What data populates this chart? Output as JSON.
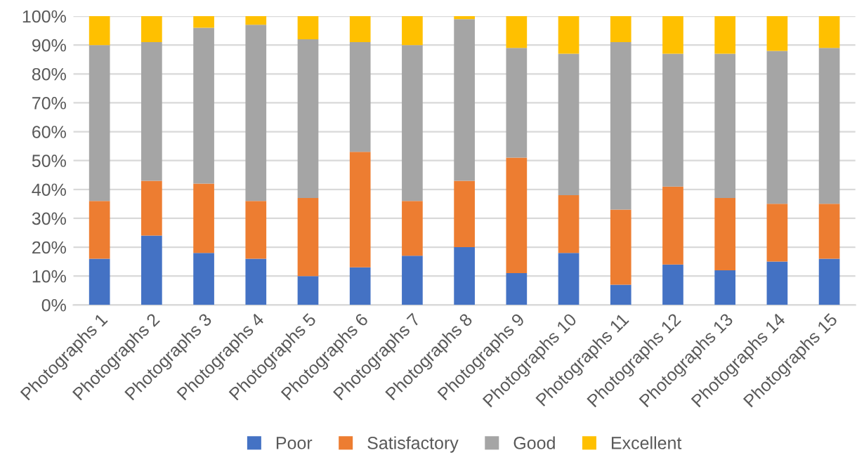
{
  "chart_data": {
    "type": "bar",
    "stacked": true,
    "categories": [
      "Photographs 1",
      "Photographs 2",
      "Photographs 3",
      "Photographs 4",
      "Photographs 5",
      "Photographs 6",
      "Photographs 7",
      "Photographs 8",
      "Photographs 9",
      "Photographs 10",
      "Photographs 11",
      "Photographs 12",
      "Photographs 13",
      "Photographs 14",
      "Photographs 15"
    ],
    "series": [
      {
        "name": "Poor",
        "color": "#4472c4",
        "values": [
          16,
          24,
          18,
          16,
          10,
          13,
          17,
          20,
          11,
          18,
          7,
          14,
          12,
          15,
          16
        ]
      },
      {
        "name": "Satisfactory",
        "color": "#ed7d31",
        "values": [
          20,
          19,
          24,
          20,
          27,
          40,
          19,
          23,
          40,
          20,
          26,
          27,
          25,
          20,
          19
        ]
      },
      {
        "name": "Good",
        "color": "#a5a5a5",
        "values": [
          54,
          48,
          54,
          61,
          55,
          38,
          54,
          56,
          38,
          49,
          58,
          46,
          50,
          53,
          54
        ]
      },
      {
        "name": "Excellent",
        "color": "#ffc000",
        "values": [
          10,
          9,
          4,
          3,
          8,
          9,
          10,
          1,
          11,
          13,
          9,
          13,
          13,
          12,
          11
        ]
      }
    ],
    "ylim": [
      0,
      100
    ],
    "yticks": [
      {
        "value": 0,
        "label": "0%"
      },
      {
        "value": 10,
        "label": "10%"
      },
      {
        "value": 20,
        "label": "20%"
      },
      {
        "value": 30,
        "label": "30%"
      },
      {
        "value": 40,
        "label": "40%"
      },
      {
        "value": 50,
        "label": "50%"
      },
      {
        "value": 60,
        "label": "60%"
      },
      {
        "value": 70,
        "label": "70%"
      },
      {
        "value": 80,
        "label": "80%"
      },
      {
        "value": 90,
        "label": "90%"
      },
      {
        "value": 100,
        "label": "100%"
      }
    ],
    "grid": "y",
    "legend": "bottom"
  }
}
